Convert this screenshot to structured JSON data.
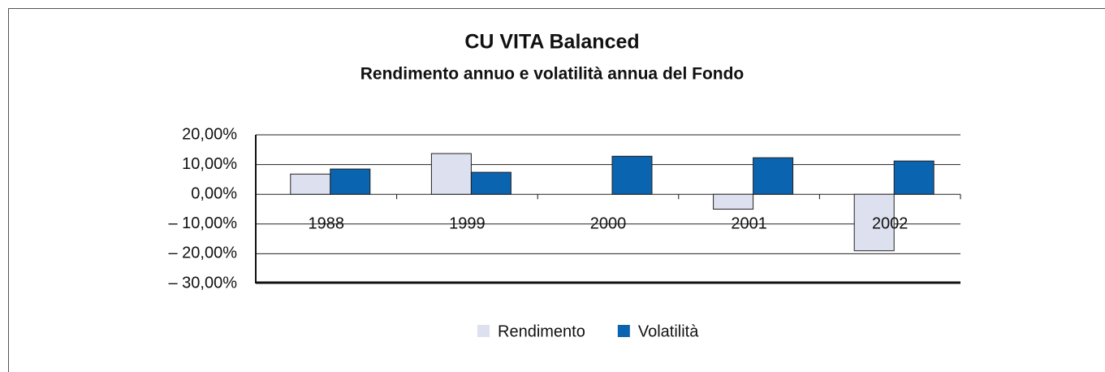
{
  "chart_data": {
    "type": "bar",
    "title": "CU VITA Balanced",
    "subtitle": "Rendimento annuo e volatilità annua del Fondo",
    "categories": [
      "1988",
      "1999",
      "2000",
      "2001",
      "2002"
    ],
    "series": [
      {
        "name": "Rendimento",
        "color": "#dde0ef",
        "values": [
          6.8,
          13.7,
          0,
          -5,
          -19
        ]
      },
      {
        "name": "Volatilità",
        "color": "#0a64b0",
        "values": [
          8.5,
          7.4,
          12.8,
          12.3,
          11.2
        ]
      }
    ],
    "ylim": [
      -30,
      20
    ],
    "yticks": [
      {
        "value": 20,
        "label": "20,00%"
      },
      {
        "value": 10,
        "label": "10,00%"
      },
      {
        "value": 0,
        "label": "0,00%"
      },
      {
        "value": -10,
        "label": "– 10,00%"
      },
      {
        "value": -20,
        "label": "– 20,00%"
      },
      {
        "value": -30,
        "label": "– 30,00%"
      }
    ],
    "grid": true
  }
}
